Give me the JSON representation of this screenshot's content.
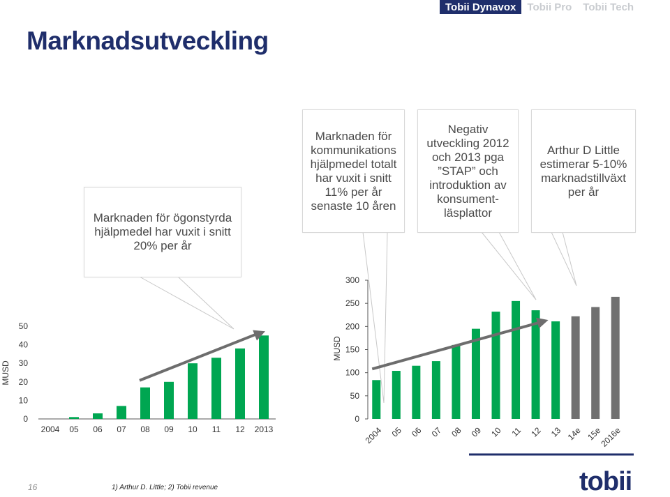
{
  "nav": {
    "tabs": [
      "Tobii Dynavox",
      "Tobii Pro",
      "Tobii Tech"
    ],
    "active": 0
  },
  "title": "Marknadsutveckling",
  "callouts": {
    "c1": "Marknaden för ögonstyrda hjälpmedel har vuxit i snitt 20% per år",
    "c2": "Marknaden för kommunikations hjälpmedel totalt har vuxit i snitt 11% per år senaste 10 åren",
    "c3": "Negativ utveckling 2012 och 2013 pga ”STAP” och introduktion av konsument-läsplattor",
    "c4": "Arthur D Little estimerar 5-10% marknadstillväxt per år"
  },
  "colors": {
    "accent": "#00a651",
    "forecast": "#707070",
    "navy": "#1f2e6b",
    "arrow": "#6d6d6d"
  },
  "footer": {
    "page_number": "16",
    "footnote": "1) Arthur D. Little; 2) Tobii revenue",
    "logo": "tobii"
  },
  "chart_data": [
    {
      "type": "bar",
      "ylabel": "MUSD",
      "ylim": [
        0,
        50
      ],
      "yticks": [
        "0",
        "10",
        "20",
        "30",
        "40",
        "50"
      ],
      "categories": [
        "2004",
        "05",
        "06",
        "07",
        "08",
        "09",
        "10",
        "11",
        "12",
        "2013"
      ],
      "values": [
        0,
        1,
        3,
        7,
        17,
        20,
        30,
        33,
        38,
        45
      ],
      "trend": "arrow"
    },
    {
      "type": "bar",
      "ylabel": "MUSD",
      "ylim": [
        0,
        300
      ],
      "yticks": [
        "0",
        "50",
        "100",
        "150",
        "200",
        "250",
        "300"
      ],
      "categories": [
        "2004",
        "05",
        "06",
        "07",
        "08",
        "09",
        "10",
        "11",
        "12",
        "13",
        "14e",
        "15e",
        "2016e"
      ],
      "values": [
        84,
        104,
        115,
        125,
        160,
        195,
        232,
        255,
        235,
        211,
        222,
        242,
        264
      ],
      "forecast": [
        false,
        false,
        false,
        false,
        false,
        false,
        false,
        false,
        false,
        false,
        true,
        true,
        true
      ],
      "trend": "arrow"
    }
  ]
}
